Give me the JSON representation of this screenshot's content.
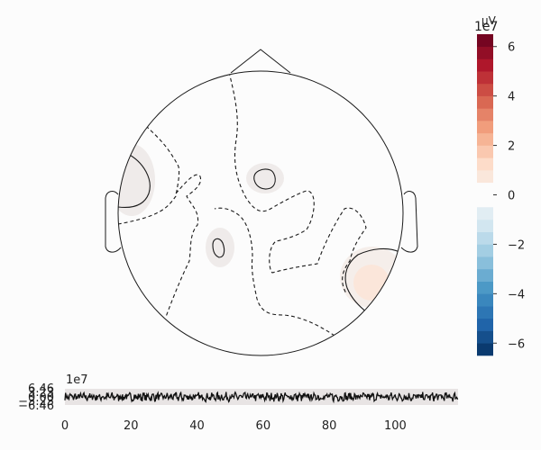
{
  "chart_data": [
    {
      "type": "heatmap",
      "colorbar": {
        "exponent_label": "1e7",
        "partial_unit_glyph": "µV",
        "range": [
          -6.5,
          6.5
        ],
        "ticks": [
          6,
          4,
          2,
          0,
          -2,
          -4,
          -6
        ],
        "tick_labels": [
          "6",
          "4",
          "2",
          "0",
          "−2",
          "−4",
          "−6"
        ],
        "colormap": "RdBu_r",
        "neutral_band": [
          -0.5,
          0.5
        ]
      },
      "contour_styles": {
        "positive": "solid",
        "negative": "dashed"
      },
      "colors": {
        "outline": "#1a1a1a",
        "warm_blob": "#fbe6da",
        "faint_blob": "#efebea"
      }
    },
    {
      "type": "line",
      "exponent_label": "1e7",
      "ytick_labels": [
        "6.46",
        "0.00",
        "−6.46"
      ],
      "overlapping_tick_labels": [
        "3.23",
        "−3.23"
      ],
      "xticks": [
        0,
        20,
        40,
        60,
        80,
        100
      ],
      "xtick_labels": [
        "0",
        "20",
        "40",
        "60",
        "80",
        "100"
      ],
      "xlim": [
        0,
        119
      ],
      "ylim": [
        -6.46,
        6.46
      ],
      "colors": {
        "trace": "#111111",
        "band": "#e8e4e4"
      }
    }
  ]
}
